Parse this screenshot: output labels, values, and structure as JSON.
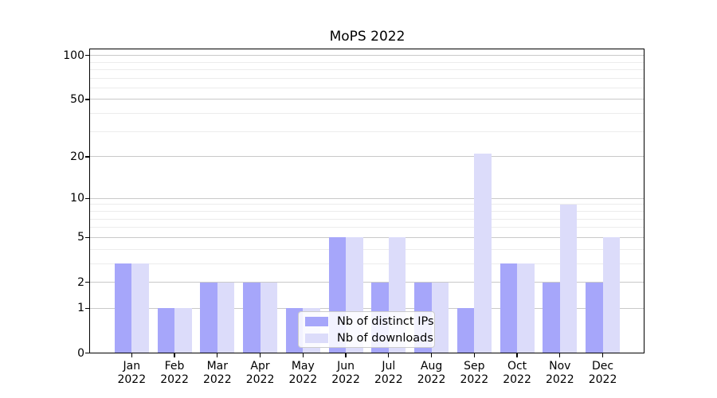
{
  "chart_data": {
    "type": "bar",
    "title": "MoPS 2022",
    "scale": "log1p",
    "grid": true,
    "legend_position": "lower center",
    "year": "2022",
    "categories": [
      "Jan",
      "Feb",
      "Mar",
      "Apr",
      "May",
      "Jun",
      "Jul",
      "Aug",
      "Sep",
      "Oct",
      "Nov",
      "Dec"
    ],
    "series": [
      {
        "name": "Nb of distinct IPs",
        "color": "#a6a6fa",
        "values": [
          3,
          1,
          2,
          2,
          1,
          5,
          2,
          2,
          1,
          3,
          2,
          2
        ]
      },
      {
        "name": "Nb of downloads",
        "color": "#dcdcfa",
        "values": [
          3,
          1,
          2,
          2,
          1,
          5,
          5,
          2,
          21,
          3,
          9,
          5
        ]
      }
    ],
    "y_major_ticks": [
      100,
      50,
      20,
      10,
      5,
      2,
      1,
      0
    ],
    "y_minor_ticks": [
      3,
      4,
      6,
      7,
      8,
      9,
      30,
      40,
      60,
      70,
      80,
      90
    ],
    "ylim": [
      0,
      110
    ],
    "xlabel": "",
    "ylabel": "",
    "colors": {
      "background": "#ffffff",
      "spine": "#000000",
      "grid_major": "#c9c9c9",
      "grid_minor": "#ececec",
      "tick_text": "#000000"
    }
  }
}
